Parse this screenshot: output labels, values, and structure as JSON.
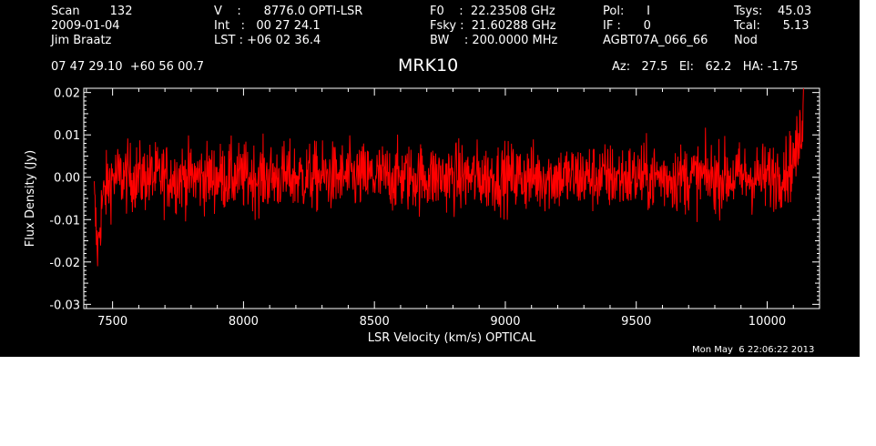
{
  "header": {
    "col1": [
      "Scan        132",
      "2009-01-04",
      "Jim Braatz"
    ],
    "col2": [
      "V    :      8776.0 OPTI-LSR",
      "Int   :   00 27 24.1",
      "LST : +06 02 36.4"
    ],
    "col3": [
      "F0    :  22.23508 GHz",
      "Fsky :  21.60288 GHz",
      "BW    : 200.0000 MHz"
    ],
    "col4": [
      "Pol:      I",
      "IF :      0",
      "AGBT07A_066_66"
    ],
    "col5": [
      "Tsys:    45.03",
      "Tcal:      5.13",
      "Nod"
    ],
    "coords": "07 47 29.10  +60 56 00.7",
    "source": "MRK10",
    "azel": "Az:   27.5   El:   62.2   HA: -1.75"
  },
  "footer": {
    "timestamp": "Mon May  6 22:06:22 2013"
  },
  "colors": {
    "background": "#000000",
    "axes": "#ffffff",
    "trace": "#ff0000"
  },
  "chart_data": {
    "type": "line",
    "xlabel": "LSR Velocity (km/s) OPTICAL",
    "ylabel": "Flux Density (Jy)",
    "xlim": [
      7390,
      10200
    ],
    "ylim": [
      -0.031,
      0.021
    ],
    "xticks": [
      7500,
      8000,
      8500,
      9000,
      9500,
      10000
    ],
    "xtick_labels": [
      "7500",
      "8000",
      "8500",
      "9000",
      "9500",
      "10000"
    ],
    "yticks": [
      0.02,
      0.01,
      0.0,
      -0.01,
      -0.02,
      -0.03
    ],
    "ytick_labels": [
      "0.02",
      "0.01",
      "0.00",
      "-0.01",
      "-0.02",
      "-0.03"
    ],
    "grid": false,
    "series": [
      {
        "color": "#ff0000",
        "x": [
          7430,
          7440,
          7445,
          7450,
          7460,
          7480,
          7500,
          7600,
          7700,
          7800,
          7900,
          8000,
          8100,
          8200,
          8300,
          8400,
          8500,
          8600,
          8700,
          8800,
          8900,
          9000,
          9100,
          9200,
          9300,
          9400,
          9500,
          9600,
          9700,
          9800,
          9900,
          10000,
          10050,
          10080,
          10100,
          10120,
          10130,
          10140
        ],
        "y": [
          -0.005,
          -0.016,
          -0.017,
          -0.012,
          -0.006,
          -0.002,
          0.0,
          0.0,
          0.0,
          0.0,
          0.0,
          0.0,
          0.0,
          0.0,
          0.0,
          0.0,
          0.0,
          0.0,
          0.0,
          0.0,
          0.0,
          0.0,
          0.0,
          0.0,
          0.0,
          0.0,
          0.0,
          0.0,
          0.0,
          0.0,
          0.0,
          0.0,
          0.001,
          0.002,
          0.004,
          0.007,
          0.012,
          0.018
        ],
        "noise_rms": 0.004
      }
    ]
  }
}
